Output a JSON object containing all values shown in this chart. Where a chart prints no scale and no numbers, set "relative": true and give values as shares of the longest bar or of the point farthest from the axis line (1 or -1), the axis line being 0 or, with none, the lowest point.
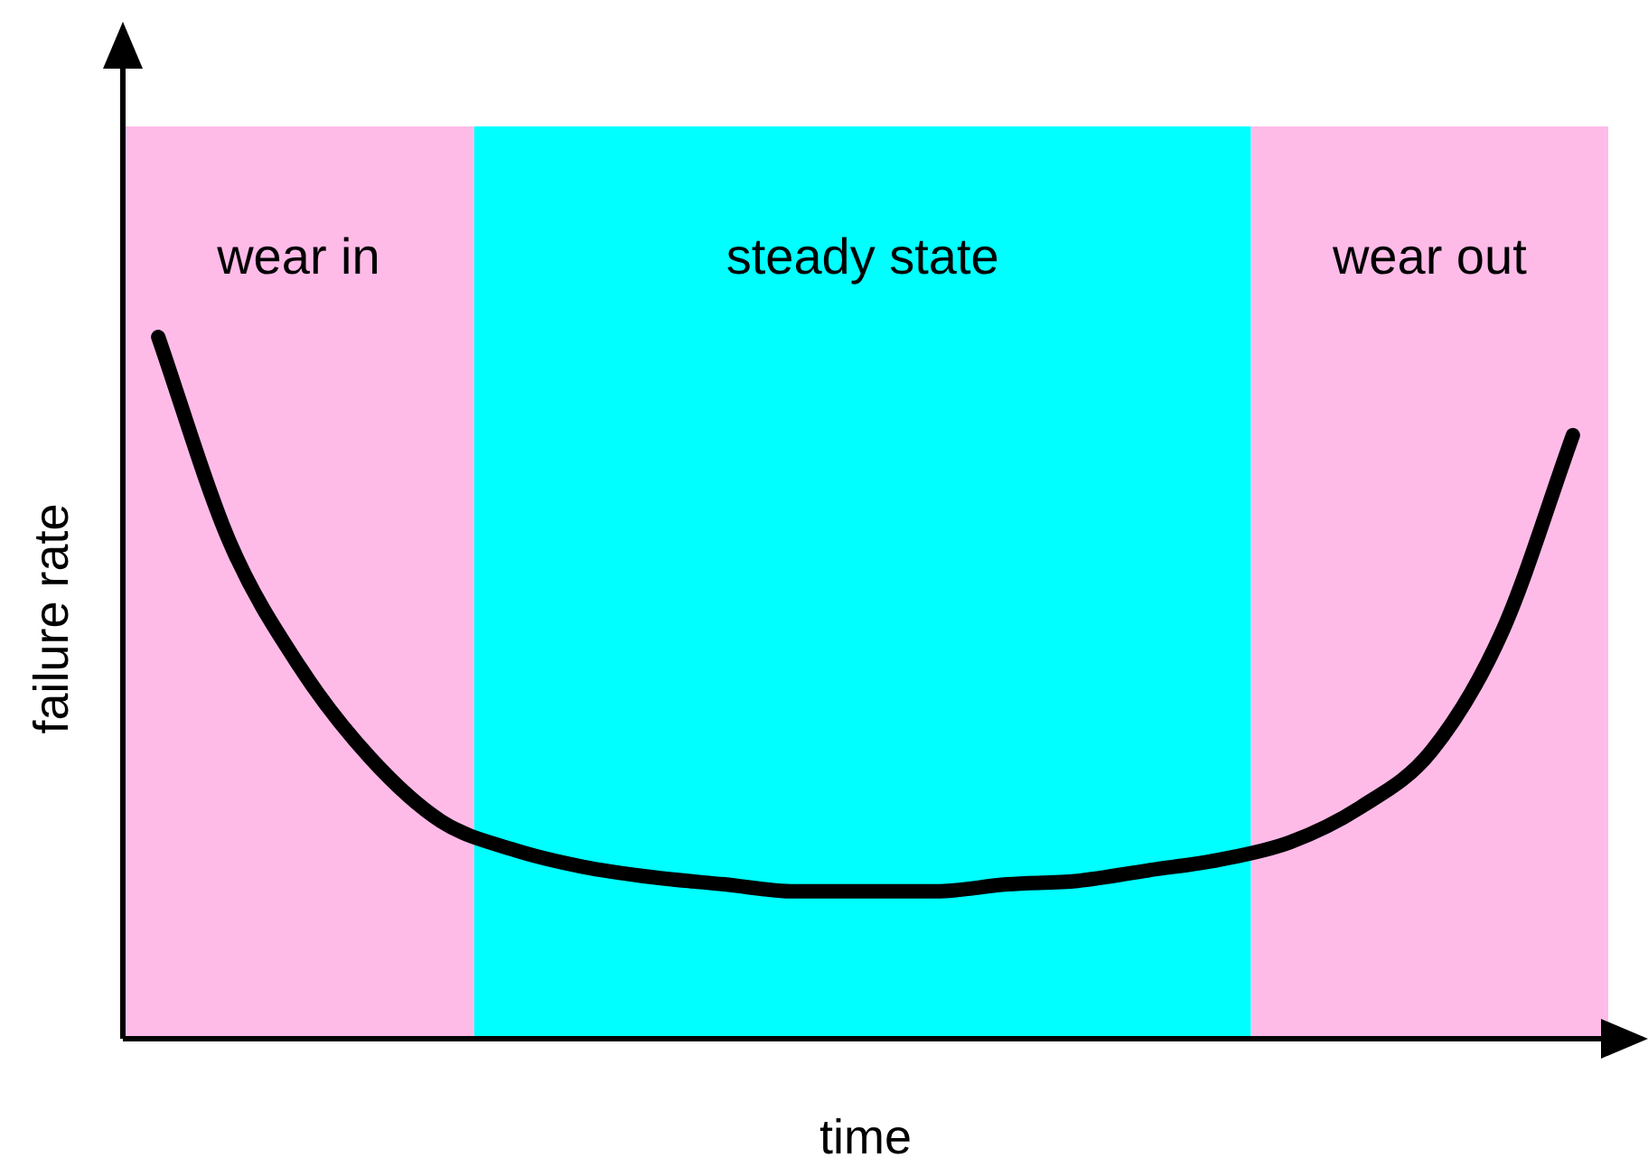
{
  "chart_data": {
    "type": "line",
    "relative": true,
    "xlabel": "time",
    "ylabel": "failure rate",
    "categories": [
      null,
      null,
      null,
      null,
      null,
      null,
      null,
      null,
      null,
      null,
      null,
      null,
      null,
      null,
      null,
      null,
      null,
      null,
      null,
      null,
      null
    ],
    "series": [
      {
        "color": "#000000",
        "values": [
          1,
          0.71,
          0.53,
          0.4,
          0.31,
          0.27,
          0.245,
          0.23,
          0.22,
          0.21,
          0.21,
          0.21,
          0.22,
          0.225,
          0.24,
          0.255,
          0.28,
          0.33,
          0.41,
          0.58,
          0.86
        ]
      }
    ],
    "annotations": [
      "wear in",
      "steady state",
      "wear out"
    ],
    "legend": false,
    "marker": "none",
    "line_style": "solid"
  }
}
